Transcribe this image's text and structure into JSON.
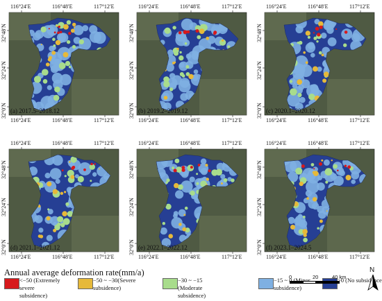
{
  "panels": [
    {
      "label": "(a) 2017.5–2018.12"
    },
    {
      "label": "(b) 2019.2–2019.12"
    },
    {
      "label": "(c) 2020.1–2020.12"
    },
    {
      "label": "(d) 2021.1–2021.12"
    },
    {
      "label": "(e) 2022.1–2022.12"
    },
    {
      "label": "(f) 2023.1–2024.5"
    }
  ],
  "lon_ticks": [
    "116°24′E",
    "116°48′E",
    "117°12′E"
  ],
  "lat_ticks": [
    "32°48′N",
    "32°24′N",
    "32°0′N"
  ],
  "legend": {
    "title": "Annual average deformation rate(mm/a)",
    "classes": [
      {
        "label": "<−50 (Extremely severe subsidence)",
        "color": "#d7191c"
      },
      {
        "label": "−50 ~ −30(Severe subsidence)",
        "color": "#e6b93a"
      },
      {
        "label": "−30 ~ −15 (Moderate subsidence)",
        "color": "#a8dc8c"
      },
      {
        "label": "−15 ~ 0 (Minor subsidence)",
        "color": "#7fb0e2"
      },
      {
        "label": ">0 (No subsidence)",
        "color": "#263f94"
      }
    ]
  },
  "scale_bar": {
    "labels": [
      "0",
      "20",
      "40 km"
    ]
  },
  "north_arrow": {
    "letter": "N",
    "icon": "north-arrow-icon"
  },
  "colors": {
    "basemap": "#4f5a43",
    "basemap_light": "#6f7a5c"
  }
}
